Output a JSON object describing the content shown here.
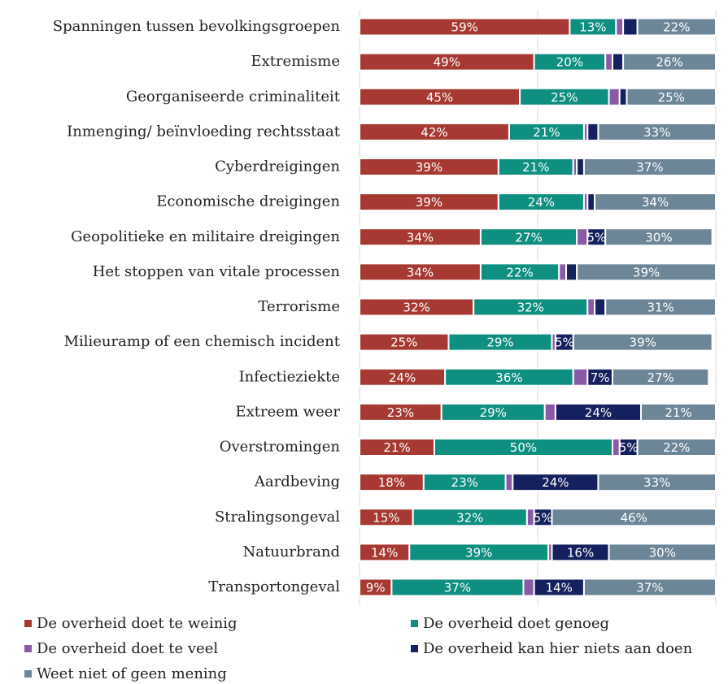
{
  "chart_data": {
    "type": "stacked-bar-horizontal",
    "categories": [
      "Spanningen tussen bevolkingsgroepen",
      "Extremisme",
      "Georganiseerde criminaliteit",
      "Inmenging/ beïnvloeding rechtsstaat",
      "Cyberdreigingen",
      "Economische dreigingen",
      "Geopolitieke en militaire dreigingen",
      "Het stoppen van vitale processen",
      "Terrorisme",
      "Milieuramp of een chemisch incident",
      "Infectieziekte",
      "Extreem weer",
      "Overstromingen",
      "Aardbeving",
      "Stralingsongeval",
      "Natuurbrand",
      "Transportongeval"
    ],
    "series": [
      {
        "name": "De overheid doet te weinig",
        "color": "#a63a32",
        "values": [
          59,
          49,
          45,
          42,
          39,
          39,
          34,
          34,
          32,
          25,
          24,
          23,
          21,
          18,
          15,
          14,
          9
        ],
        "value_labels": [
          "59%",
          "49%",
          "45%",
          "42%",
          "39%",
          "39%",
          "34%",
          "34%",
          "32%",
          "25%",
          "24%",
          "23%",
          "21%",
          "18%",
          "15%",
          "14%",
          "9%"
        ]
      },
      {
        "name": "De overheid doet genoeg",
        "color": "#0f8f80",
        "values": [
          13,
          20,
          25,
          21,
          21,
          24,
          27,
          22,
          32,
          29,
          36,
          29,
          50,
          23,
          32,
          39,
          37
        ],
        "value_labels": [
          "13%",
          "20%",
          "25%",
          "21%",
          "21%",
          "24%",
          "27%",
          "22%",
          "32%",
          "29%",
          "36%",
          "29%",
          "50%",
          "23%",
          "32%",
          "39%",
          "37%"
        ]
      },
      {
        "name": "De overheid doet te veel",
        "color": "#8b5aa6",
        "values": [
          2,
          2,
          3,
          1,
          1,
          1,
          3,
          2,
          2,
          1,
          4,
          3,
          2,
          2,
          2,
          1,
          3
        ],
        "value_labels": [
          null,
          null,
          null,
          null,
          null,
          null,
          null,
          null,
          null,
          null,
          null,
          null,
          null,
          null,
          null,
          null,
          null
        ]
      },
      {
        "name": "De overheid kan hier niets aan doen",
        "color": "#15215e",
        "values": [
          4,
          3,
          2,
          3,
          2,
          2,
          5,
          3,
          3,
          5,
          7,
          24,
          5,
          24,
          5,
          16,
          14
        ],
        "value_labels": [
          null,
          null,
          null,
          null,
          null,
          null,
          "5%",
          null,
          null,
          "5%",
          "7%",
          "24%",
          "5%",
          "24%",
          "5%",
          "16%",
          "14%"
        ]
      },
      {
        "name": "Weet niet of geen mening",
        "color": "#6c8597",
        "values": [
          22,
          26,
          25,
          33,
          37,
          34,
          30,
          39,
          31,
          39,
          27,
          21,
          22,
          33,
          46,
          30,
          37
        ],
        "value_labels": [
          "22%",
          "26%",
          "25%",
          "33%",
          "37%",
          "34%",
          "30%",
          "39%",
          "31%",
          "39%",
          "27%",
          "21%",
          "22%",
          "33%",
          "46%",
          "30%",
          "37%"
        ]
      }
    ],
    "xlim": [
      0,
      100
    ],
    "xticks": [
      0,
      50,
      100
    ],
    "grid": true
  }
}
